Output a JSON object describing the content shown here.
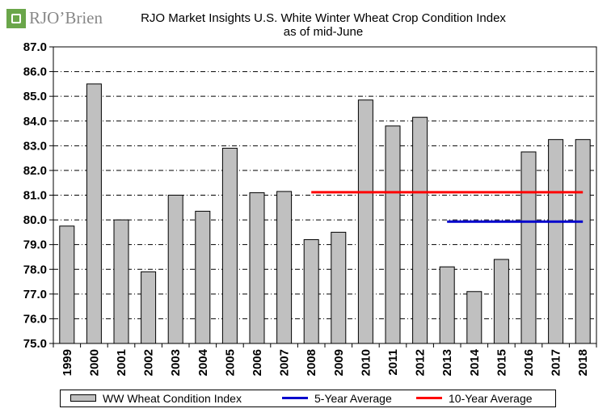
{
  "logo": {
    "text": "RJO’Brien"
  },
  "title": {
    "line1": "RJO Market Insights U.S. White Winter Wheat Crop Condition Index",
    "line2": "as of mid-June"
  },
  "colors": {
    "bar_fill": "#c0c0c0",
    "bar_stroke": "#000000",
    "five_year_avg": "#0000cc",
    "ten_year_avg": "#ff0000",
    "logo_green": "#6aa64a"
  },
  "legend": {
    "placement": "bottom",
    "items": [
      {
        "key": "bars",
        "label": "WW Wheat Condition Index"
      },
      {
        "key": "avg5",
        "label": "5-Year Average"
      },
      {
        "key": "avg10",
        "label": "10-Year Average"
      }
    ]
  },
  "chart_data": {
    "type": "bar",
    "title": "RJO Market Insights U.S. White Winter Wheat Crop Condition Index",
    "subtitle": "as of mid-June",
    "xlabel": "",
    "ylabel": "",
    "ylim": [
      75.0,
      87.0
    ],
    "ytick_step": 1.0,
    "yticks": [
      "75.0",
      "76.0",
      "77.0",
      "78.0",
      "79.0",
      "80.0",
      "81.0",
      "82.0",
      "83.0",
      "84.0",
      "85.0",
      "86.0",
      "87.0"
    ],
    "grid": true,
    "categories": [
      "1999",
      "2000",
      "2001",
      "2002",
      "2003",
      "2004",
      "2005",
      "2006",
      "2007",
      "2008",
      "2009",
      "2010",
      "2011",
      "2012",
      "2013",
      "2014",
      "2015",
      "2016",
      "2017",
      "2018"
    ],
    "series": [
      {
        "name": "WW Wheat Condition Index",
        "type": "bar",
        "values": [
          79.75,
          85.5,
          80.0,
          77.9,
          81.0,
          80.35,
          82.9,
          81.1,
          81.15,
          79.2,
          79.5,
          84.85,
          83.8,
          84.15,
          78.1,
          77.1,
          78.4,
          82.75,
          83.25,
          83.25
        ]
      },
      {
        "name": "5-Year Average",
        "type": "line",
        "value": 79.93,
        "from": "2013",
        "to": "2018"
      },
      {
        "name": "10-Year Average",
        "type": "line",
        "value": 81.12,
        "from": "2008",
        "to": "2018"
      }
    ]
  }
}
